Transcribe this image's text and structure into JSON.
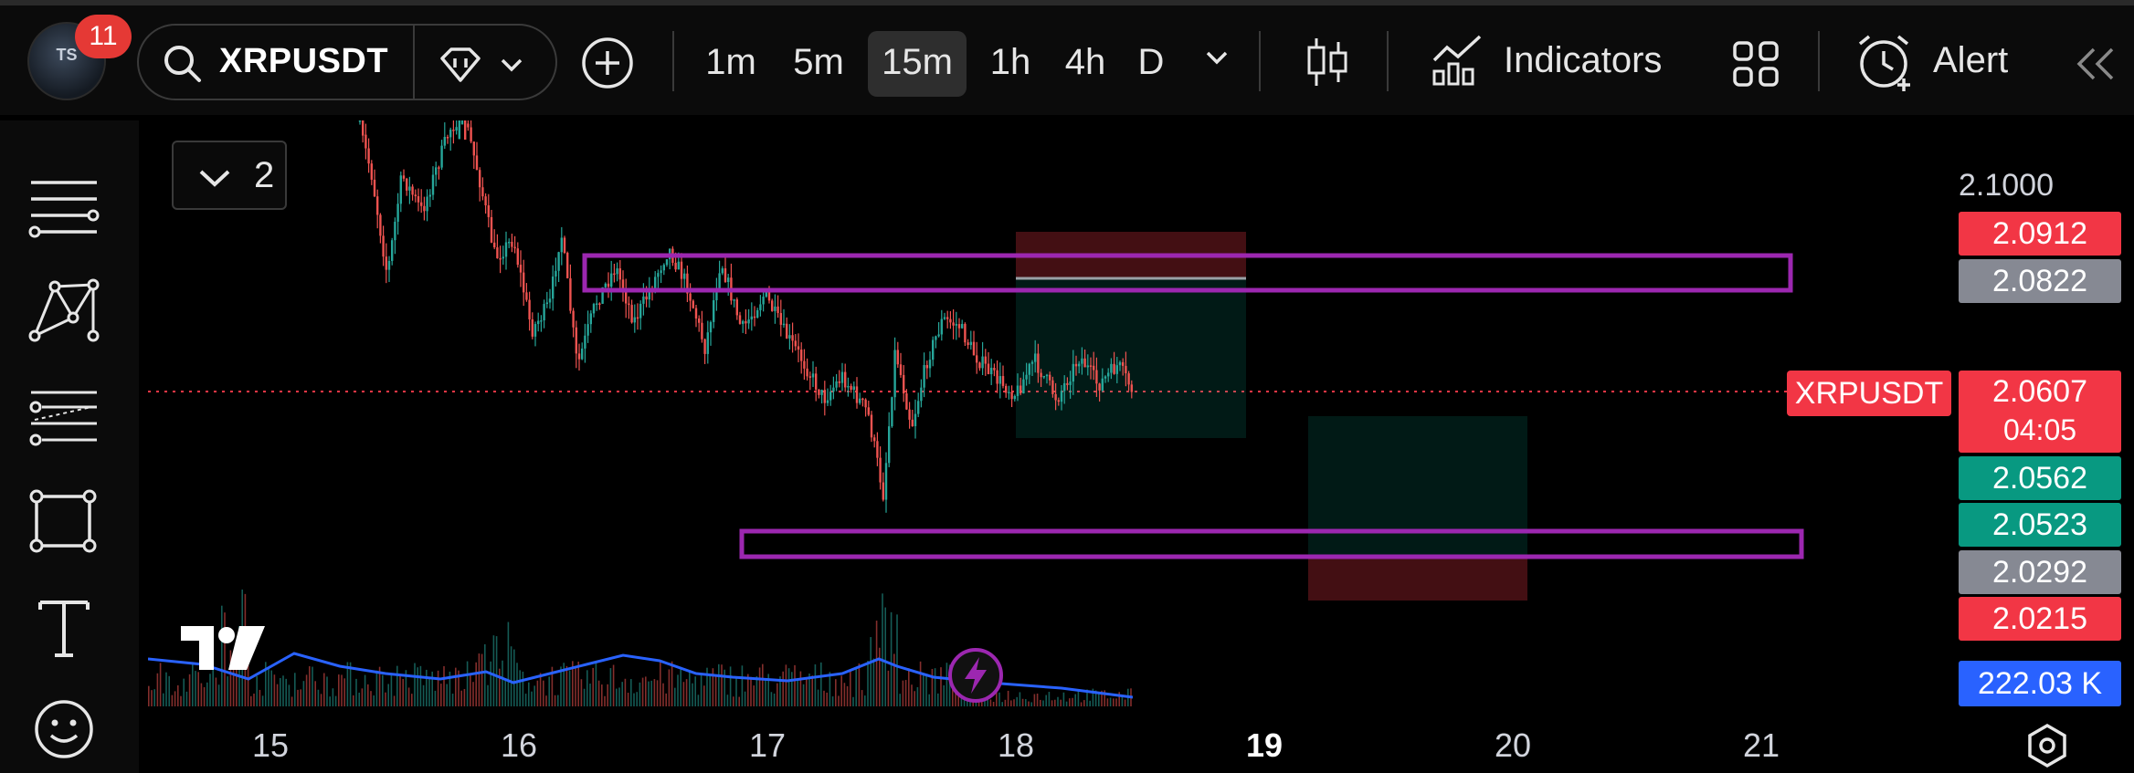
{
  "header": {
    "notification_count": "11",
    "avatar_text": "TS",
    "symbol": "XRPUSDT",
    "timeframes": [
      "1m",
      "5m",
      "15m",
      "1h",
      "4h",
      "D"
    ],
    "active_timeframe": "15m",
    "indicators_label": "Indicators",
    "alert_label": "Alert"
  },
  "chart": {
    "collapse_count": "2",
    "x_axis_labels": [
      "15",
      "16",
      "17",
      "18",
      "19",
      "20",
      "21"
    ],
    "bold_label": "19",
    "price_top": "2.1000",
    "symbol_tag": "XRPUSDT",
    "last_price": "2.0607",
    "countdown": "04:05",
    "price_tags": [
      {
        "value": "2.0912",
        "color": "#f23645"
      },
      {
        "value": "2.0822",
        "color": "#868993"
      },
      {
        "value": "2.0562",
        "color": "#089981"
      },
      {
        "value": "2.0523",
        "color": "#089981"
      },
      {
        "value": "2.0292",
        "color": "#868993"
      },
      {
        "value": "2.0215",
        "color": "#f23645"
      }
    ],
    "volume_tag": "222.03 K"
  },
  "colors": {
    "up": "#26a69a",
    "down": "#ef5350",
    "zone": "#9c27b0",
    "volume_ma": "#2962ff"
  }
}
